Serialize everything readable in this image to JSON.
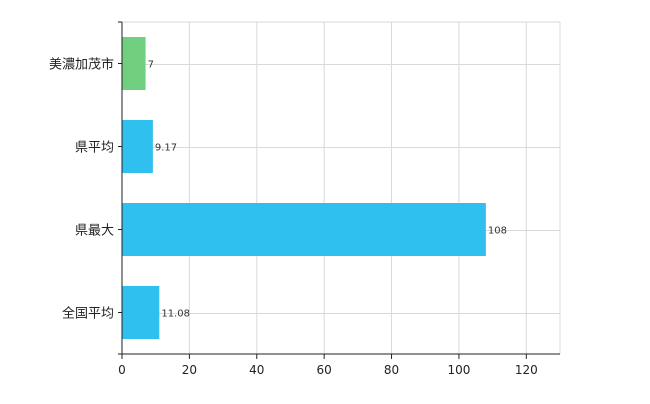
{
  "chart_data": {
    "type": "bar",
    "orientation": "horizontal",
    "categories": [
      "美濃加茂市",
      "県平均",
      "県最大",
      "全国平均"
    ],
    "values": [
      7,
      9.17,
      108,
      11.08
    ],
    "value_labels": [
      "7",
      "9.17",
      "108",
      "11.08"
    ],
    "bar_colors": [
      "#70d080",
      "#30c0f0",
      "#30c0f0",
      "#30c0f0"
    ],
    "title": "",
    "xlabel": "",
    "ylabel": "",
    "xlim": [
      0,
      130
    ],
    "x_ticks": [
      0,
      20,
      40,
      60,
      80,
      100,
      120
    ],
    "x_tick_labels": [
      "0",
      "20",
      "40",
      "60",
      "80",
      "100",
      "120"
    ],
    "grid": true,
    "legend": "none"
  }
}
